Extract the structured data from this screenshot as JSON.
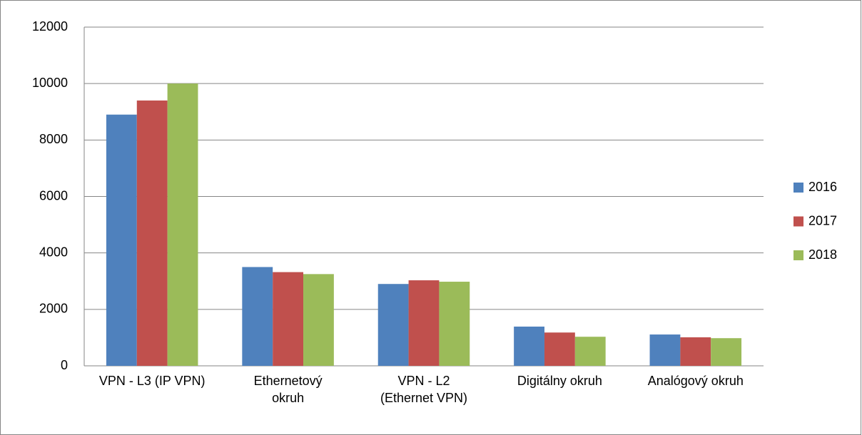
{
  "chart_data": {
    "type": "bar",
    "categories": [
      "VPN - L3 (IP VPN)",
      "Ethernetový\nokruh",
      "VPN - L2\n(Ethernet VPN)",
      "Digitálny okruh",
      "Analógový okruh"
    ],
    "series": [
      {
        "name": "2016",
        "color": "#4f81bd",
        "values": [
          8900,
          3500,
          2900,
          1390,
          1110
        ]
      },
      {
        "name": "2017",
        "color": "#c0504d",
        "values": [
          9400,
          3320,
          3030,
          1180,
          1010
        ]
      },
      {
        "name": "2018",
        "color": "#9bbb59",
        "values": [
          10000,
          3250,
          2980,
          1030,
          980
        ]
      }
    ],
    "ylim": [
      0,
      12000
    ],
    "yticks": [
      0,
      2000,
      4000,
      6000,
      8000,
      10000,
      12000
    ],
    "grid": true,
    "legend": "right"
  }
}
